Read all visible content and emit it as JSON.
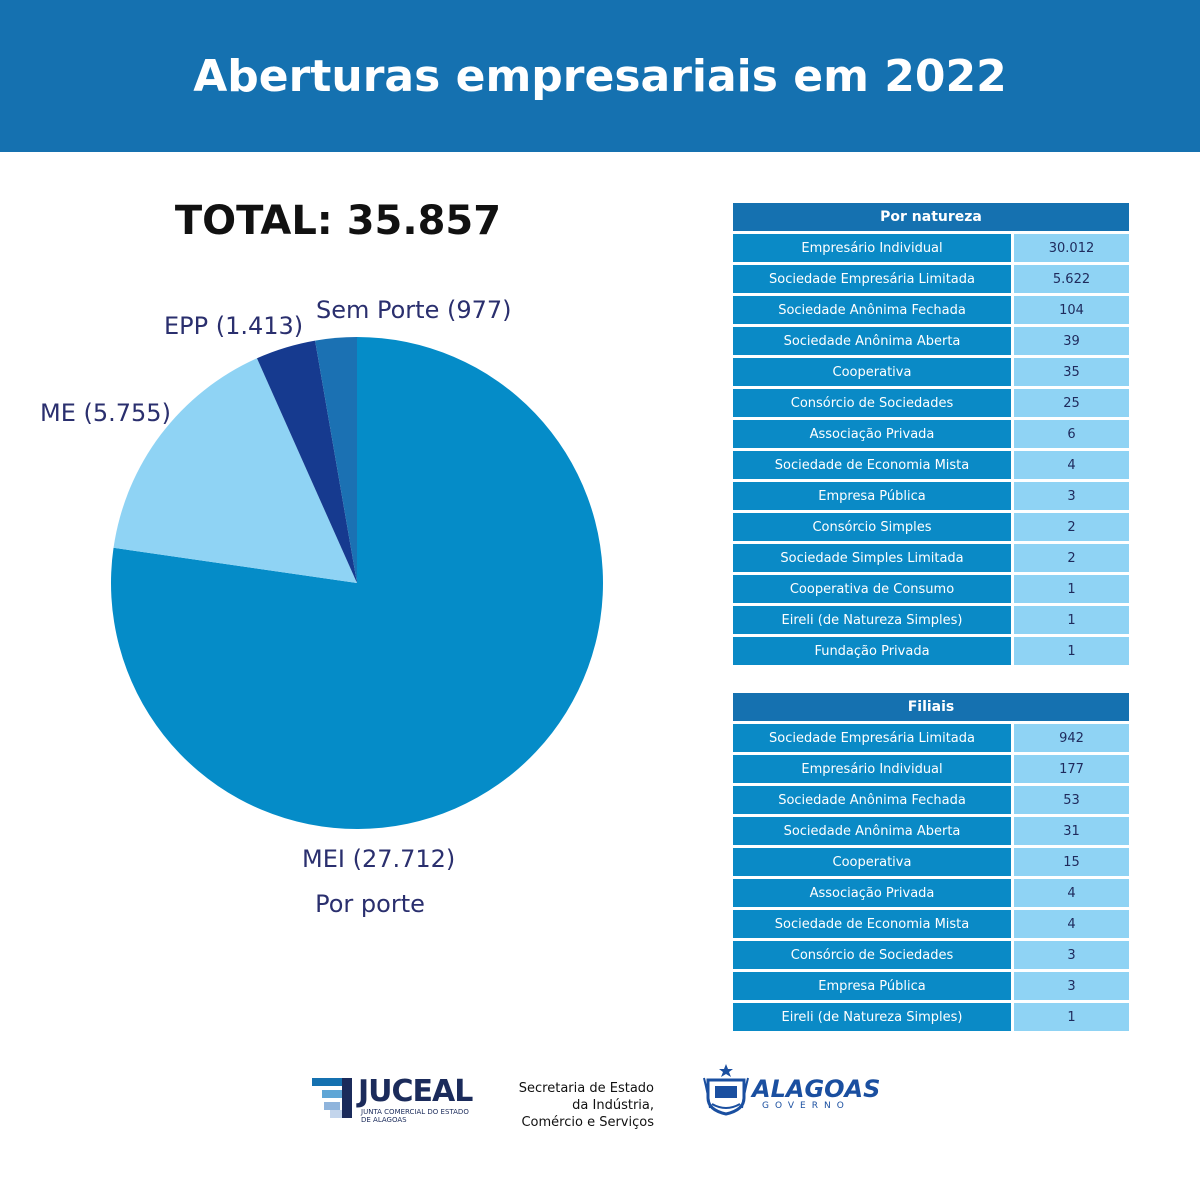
{
  "header": {
    "title": "Aberturas empresariais em 2022"
  },
  "total_label": "TOTAL: 35.857",
  "chart_data": {
    "type": "pie",
    "title": "Por porte",
    "total": 35857,
    "slices": [
      {
        "name": "MEI",
        "value": 27712,
        "label": "MEI (27.712)",
        "color": "#058cc8"
      },
      {
        "name": "ME",
        "value": 5755,
        "label": "ME (5.755)",
        "color": "#8fd3f4"
      },
      {
        "name": "EPP",
        "value": 1413,
        "label": "EPP (1.413)",
        "color": "#163a8f"
      },
      {
        "name": "Sem Porte",
        "value": 977,
        "label": "Sem Porte (977)",
        "color": "#1b71b3"
      }
    ]
  },
  "por_natureza": {
    "title": "Por natureza",
    "rows": [
      {
        "name": "Empresário Individual",
        "value": "30.012"
      },
      {
        "name": "Sociedade Empresária Limitada",
        "value": "5.622"
      },
      {
        "name": "Sociedade Anônima Fechada",
        "value": "104"
      },
      {
        "name": "Sociedade Anônima Aberta",
        "value": "39"
      },
      {
        "name": "Cooperativa",
        "value": "35"
      },
      {
        "name": "Consórcio de Sociedades",
        "value": "25"
      },
      {
        "name": "Associação Privada",
        "value": "6"
      },
      {
        "name": "Sociedade de Economia Mista",
        "value": "4"
      },
      {
        "name": "Empresa Pública",
        "value": "3"
      },
      {
        "name": "Consórcio Simples",
        "value": "2"
      },
      {
        "name": "Sociedade Simples Limitada",
        "value": "2"
      },
      {
        "name": "Cooperativa de Consumo",
        "value": "1"
      },
      {
        "name": "Eireli (de Natureza Simples)",
        "value": "1"
      },
      {
        "name": "Fundação Privada",
        "value": "1"
      }
    ]
  },
  "filiais": {
    "title": "Filiais",
    "rows": [
      {
        "name": "Sociedade Empresária Limitada",
        "value": "942"
      },
      {
        "name": "Empresário Individual",
        "value": "177"
      },
      {
        "name": "Sociedade Anônima Fechada",
        "value": "53"
      },
      {
        "name": "Sociedade Anônima Aberta",
        "value": "31"
      },
      {
        "name": "Cooperativa",
        "value": "15"
      },
      {
        "name": "Associação Privada",
        "value": "4"
      },
      {
        "name": "Sociedade de Economia Mista",
        "value": "4"
      },
      {
        "name": "Consórcio de Sociedades",
        "value": "3"
      },
      {
        "name": "Empresa Pública",
        "value": "3"
      },
      {
        "name": "Eireli (de Natureza Simples)",
        "value": "1"
      }
    ]
  },
  "footer": {
    "juceal": {
      "name": "JUCEAL",
      "subtitle": "JUNTA COMERCIAL DO ESTADO DE ALAGOAS"
    },
    "secretaria": [
      "Secretaria de Estado",
      "da Indústria,",
      "Comércio e Serviços"
    ],
    "alagoas": {
      "name": "ALAGOAS",
      "subtitle": "GOVERNO"
    }
  }
}
